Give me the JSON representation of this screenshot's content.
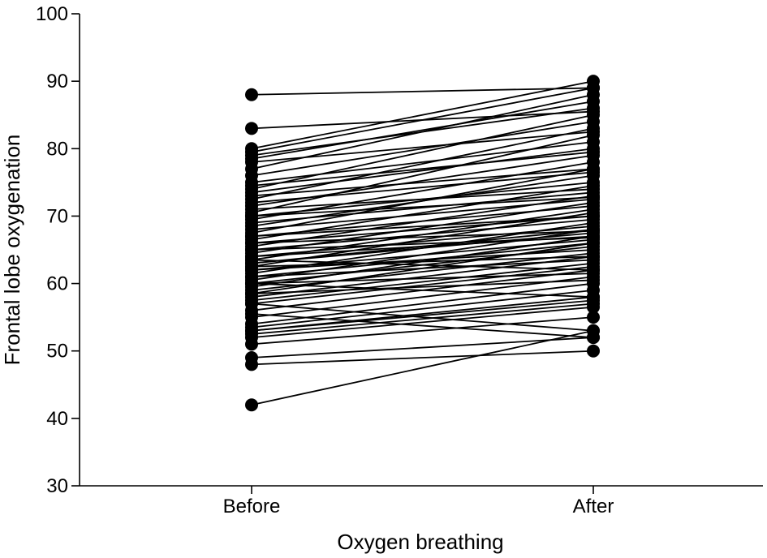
{
  "chart_data": {
    "type": "line",
    "title": "",
    "xlabel": "Oxygen breathing",
    "ylabel": "Frontal lobe oxygenation",
    "categories": [
      "Before",
      "After"
    ],
    "ylim": [
      30,
      100
    ],
    "yticks": [
      30,
      40,
      50,
      60,
      70,
      80,
      90,
      100
    ],
    "grid": false,
    "legend": "none",
    "pairs": [
      [
        88,
        89
      ],
      [
        83,
        85.5
      ],
      [
        80,
        90
      ],
      [
        79.5,
        89
      ],
      [
        79,
        86
      ],
      [
        78.5,
        87
      ],
      [
        78,
        82.5
      ],
      [
        77,
        88
      ],
      [
        76,
        84
      ],
      [
        75,
        81
      ],
      [
        74,
        85
      ],
      [
        73.5,
        80
      ],
      [
        73,
        77
      ],
      [
        72.5,
        83
      ],
      [
        72,
        76.5
      ],
      [
        71.5,
        79
      ],
      [
        71,
        74
      ],
      [
        70.5,
        82
      ],
      [
        70,
        75
      ],
      [
        69.5,
        78
      ],
      [
        69,
        73.5
      ],
      [
        68.5,
        76
      ],
      [
        68,
        72.5
      ],
      [
        67.5,
        77
      ],
      [
        67,
        71.5
      ],
      [
        66.5,
        74.5
      ],
      [
        66,
        70
      ],
      [
        65.5,
        73
      ],
      [
        65,
        69.5
      ],
      [
        64.5,
        72
      ],
      [
        64,
        68.5
      ],
      [
        63.5,
        71
      ],
      [
        63,
        67.5
      ],
      [
        62.5,
        70.5
      ],
      [
        62,
        66.5
      ],
      [
        61.5,
        69
      ],
      [
        61,
        66
      ],
      [
        60.5,
        68
      ],
      [
        60,
        65.5
      ],
      [
        59.5,
        67
      ],
      [
        59,
        64.5
      ],
      [
        58.5,
        66
      ],
      [
        58,
        64
      ],
      [
        57.5,
        63
      ],
      [
        57,
        62.5
      ],
      [
        56,
        62
      ],
      [
        55,
        61
      ],
      [
        54,
        60
      ],
      [
        53.5,
        59
      ],
      [
        53,
        58
      ],
      [
        52.5,
        57
      ],
      [
        52,
        56.5
      ],
      [
        51,
        55
      ],
      [
        49,
        52
      ],
      [
        48,
        50
      ],
      [
        42,
        53
      ],
      [
        62,
        65
      ],
      [
        63,
        68
      ],
      [
        64,
        67
      ],
      [
        61,
        63.5
      ],
      [
        60,
        61.5
      ],
      [
        65,
        66.8
      ],
      [
        66,
        67.8
      ],
      [
        67,
        70
      ],
      [
        62.5,
        64
      ],
      [
        58.5,
        60.5
      ],
      [
        70,
        72.8
      ],
      [
        74.5,
        79.5
      ],
      [
        53,
        57.5
      ],
      [
        55.5,
        52
      ],
      [
        57,
        53
      ],
      [
        60,
        58
      ],
      [
        63.5,
        62
      ]
    ]
  }
}
